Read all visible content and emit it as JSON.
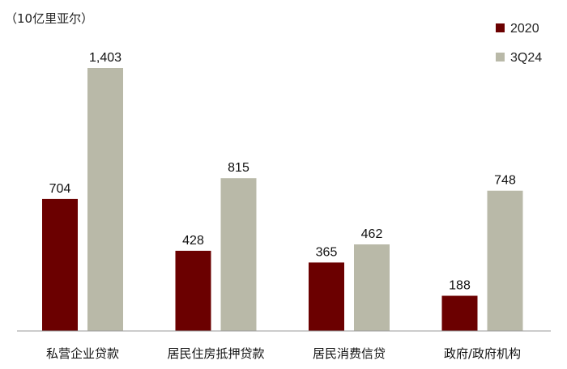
{
  "chart_data": {
    "type": "bar",
    "unit_label": "（10亿里亚尔）",
    "categories": [
      "私营企业贷款",
      "居民住房抵押贷款",
      "居民消费信贷",
      "政府/政府机构"
    ],
    "series": [
      {
        "name": "2020",
        "color": "#6b0000",
        "values": [
          704,
          428,
          365,
          188
        ],
        "labels": [
          "704",
          "428",
          "365",
          "188"
        ]
      },
      {
        "name": "3Q24",
        "color": "#b9b9a8",
        "values": [
          1403,
          815,
          462,
          748
        ],
        "labels": [
          "1,403",
          "815",
          "462",
          "748"
        ]
      }
    ],
    "ylim": [
      0,
      1403
    ],
    "legend_position": "top-right",
    "grid": false
  }
}
